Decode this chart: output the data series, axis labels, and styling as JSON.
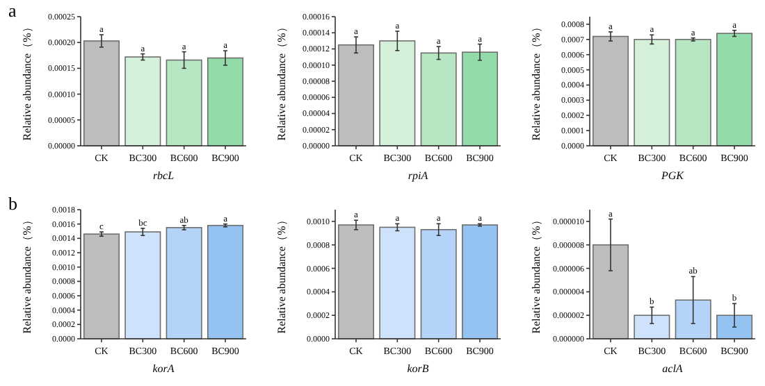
{
  "chart_data": [
    {
      "type": "bar",
      "xlabel": "rbcL",
      "ylabel": "Relative abundance（%）",
      "categories": [
        "CK",
        "BC300",
        "BC600",
        "BC900"
      ],
      "values": [
        0.000203,
        0.000172,
        0.000166,
        0.00017
      ],
      "errors": [
        1.2e-05,
        6e-06,
        1.6e-05,
        1.4e-05
      ],
      "colors": [
        "#bdbdbd",
        "#d4f0d8",
        "#b6e6c2",
        "#93dba8"
      ],
      "ylim": [
        0,
        0.00025
      ],
      "yticks": [
        {
          "value": 0,
          "label": "0.00000"
        },
        {
          "value": 5e-05,
          "label": "0.00005"
        },
        {
          "value": 0.0001,
          "label": "0.00010"
        },
        {
          "value": 0.00015,
          "label": "0.00015"
        },
        {
          "value": 0.0002,
          "label": "0.00020"
        },
        {
          "value": 0.00025,
          "label": "0.00025"
        }
      ],
      "annotations": [
        "a",
        {
          "text": "a",
          "x": "CK",
          "y": 0.000215
        },
        {
          "text": "a",
          "x": "BC300",
          "y": 0.000178
        },
        {
          "text": "a",
          "x": "BC600",
          "y": 0.000182
        },
        {
          "text": "a",
          "x": "BC900",
          "y": 0.000184
        }
      ]
    },
    {
      "type": "bar",
      "xlabel": "rpiA",
      "ylabel": "Relative abundance（%）",
      "categories": [
        "CK",
        "BC300",
        "BC600",
        "BC900"
      ],
      "values": [
        0.000125,
        0.00013,
        0.000115,
        0.000116
      ],
      "errors": [
        1e-05,
        1.2e-05,
        8e-06,
        1e-05
      ],
      "colors": [
        "#bdbdbd",
        "#d4f0d8",
        "#b6e6c2",
        "#93dba8"
      ],
      "ylim": [
        0,
        0.00016
      ],
      "yticks": [
        {
          "value": 0,
          "label": "0.00000"
        },
        {
          "value": 2e-05,
          "label": "0.00002"
        },
        {
          "value": 4e-05,
          "label": "0.00004"
        },
        {
          "value": 6e-05,
          "label": "0.00006"
        },
        {
          "value": 8e-05,
          "label": "0.00008"
        },
        {
          "value": 0.0001,
          "label": "0.00010"
        },
        {
          "value": 0.00012,
          "label": "0.00012"
        },
        {
          "value": 0.00014,
          "label": "0.00014"
        },
        {
          "value": 0.00016,
          "label": "0.00016"
        }
      ],
      "annotations": [
        {
          "text": "a",
          "x": "CK",
          "y": 0.000135
        },
        {
          "text": "a",
          "x": "BC300",
          "y": 0.000142
        },
        {
          "text": "a",
          "x": "BC600",
          "y": 0.000123
        },
        {
          "text": "a",
          "x": "BC900",
          "y": 0.000126
        }
      ]
    },
    {
      "type": "bar",
      "xlabel": "PGK",
      "ylabel": "Relative abundance（%）",
      "categories": [
        "CK",
        "BC300",
        "BC600",
        "BC900"
      ],
      "values": [
        0.00072,
        0.0007,
        0.0007,
        0.00074
      ],
      "errors": [
        3e-05,
        3e-05,
        1e-05,
        2e-05
      ],
      "colors": [
        "#bdbdbd",
        "#d4f0d8",
        "#b6e6c2",
        "#93dba8"
      ],
      "ylim": [
        0,
        0.00085
      ],
      "yticks": [
        {
          "value": 0,
          "label": "0.0000"
        },
        {
          "value": 0.0001,
          "label": "0.0001"
        },
        {
          "value": 0.0002,
          "label": "0.0002"
        },
        {
          "value": 0.0003,
          "label": "0.0003"
        },
        {
          "value": 0.0004,
          "label": "0.0004"
        },
        {
          "value": 0.0005,
          "label": "0.0005"
        },
        {
          "value": 0.0006,
          "label": "0.0006"
        },
        {
          "value": 0.0007,
          "label": "0.0007"
        },
        {
          "value": 0.0008,
          "label": "0.0008"
        }
      ],
      "annotations": [
        {
          "text": "a",
          "x": "CK",
          "y": 0.00075
        },
        {
          "text": "a",
          "x": "BC300",
          "y": 0.00073
        },
        {
          "text": "a",
          "x": "BC600",
          "y": 0.00071
        },
        {
          "text": "a",
          "x": "BC900",
          "y": 0.00076
        }
      ]
    },
    {
      "type": "bar",
      "xlabel": "korA",
      "ylabel": "Relative abundance（%）",
      "categories": [
        "CK",
        "BC300",
        "BC600",
        "BC900"
      ],
      "values": [
        0.00146,
        0.00149,
        0.00155,
        0.00158
      ],
      "errors": [
        3e-05,
        5e-05,
        3e-05,
        2e-05
      ],
      "colors": [
        "#bdbdbd",
        "#cfe2fb",
        "#b4d3f8",
        "#94c3f2"
      ],
      "ylim": [
        0,
        0.0018
      ],
      "yticks": [
        {
          "value": 0,
          "label": "0.0000"
        },
        {
          "value": 0.0002,
          "label": "0.0002"
        },
        {
          "value": 0.0004,
          "label": "0.0004"
        },
        {
          "value": 0.0006,
          "label": "0.0006"
        },
        {
          "value": 0.0008,
          "label": "0.0008"
        },
        {
          "value": 0.001,
          "label": "0.0010"
        },
        {
          "value": 0.0012,
          "label": "0.0012"
        },
        {
          "value": 0.0014,
          "label": "0.0014"
        },
        {
          "value": 0.0016,
          "label": "0.0016"
        },
        {
          "value": 0.0018,
          "label": "0.0018"
        }
      ],
      "annotations": [
        "b",
        {
          "text": "c",
          "x": "CK",
          "y": 0.00149
        },
        {
          "text": "bc",
          "x": "BC300",
          "y": 0.00154
        },
        {
          "text": "ab",
          "x": "BC600",
          "y": 0.00158
        },
        {
          "text": "a",
          "x": "BC900",
          "y": 0.0016
        }
      ]
    },
    {
      "type": "bar",
      "xlabel": "korB",
      "ylabel": "Relative abundance（%）",
      "categories": [
        "CK",
        "BC300",
        "BC600",
        "BC900"
      ],
      "values": [
        0.00097,
        0.00095,
        0.00093,
        0.00097
      ],
      "errors": [
        4e-05,
        3e-05,
        5e-05,
        1e-05
      ],
      "colors": [
        "#bdbdbd",
        "#cfe2fb",
        "#b4d3f8",
        "#94c3f2"
      ],
      "ylim": [
        0,
        0.0011
      ],
      "yticks": [
        {
          "value": 0,
          "label": "0.0000"
        },
        {
          "value": 0.0002,
          "label": "0.0002"
        },
        {
          "value": 0.0004,
          "label": "0.0004"
        },
        {
          "value": 0.0006,
          "label": "0.0006"
        },
        {
          "value": 0.0008,
          "label": "0.0008"
        },
        {
          "value": 0.001,
          "label": "0.0010"
        }
      ],
      "annotations": [
        {
          "text": "a",
          "x": "CK",
          "y": 0.00101
        },
        {
          "text": "a",
          "x": "BC300",
          "y": 0.00098
        },
        {
          "text": "a",
          "x": "BC600",
          "y": 0.00098
        },
        {
          "text": "a",
          "x": "BC900",
          "y": 0.00098
        }
      ]
    },
    {
      "type": "bar",
      "xlabel": "aclA",
      "ylabel": "Relative abundance（%）",
      "categories": [
        "CK",
        "BC300",
        "BC600",
        "BC900"
      ],
      "values": [
        8e-06,
        2e-06,
        3.3e-06,
        2e-06
      ],
      "errors": [
        2.2e-06,
        7e-07,
        2e-06,
        1e-06
      ],
      "colors": [
        "#bdbdbd",
        "#cfe2fb",
        "#b4d3f8",
        "#94c3f2"
      ],
      "ylim": [
        0,
        1.1e-05
      ],
      "yticks": [
        {
          "value": 0,
          "label": "0.000000"
        },
        {
          "value": 2e-06,
          "label": "0.000002"
        },
        {
          "value": 4e-06,
          "label": "0.000004"
        },
        {
          "value": 6e-06,
          "label": "0.000006"
        },
        {
          "value": 8e-06,
          "label": "0.000008"
        },
        {
          "value": 1e-05,
          "label": "0.000010"
        }
      ],
      "annotations": [
        {
          "text": "a",
          "x": "CK",
          "y": 1.02e-05
        },
        {
          "text": "b",
          "x": "BC300",
          "y": 2.7e-06
        },
        {
          "text": "ab",
          "x": "BC600",
          "y": 5.3e-06
        },
        {
          "text": "b",
          "x": "BC900",
          "y": 3e-06
        }
      ]
    }
  ]
}
